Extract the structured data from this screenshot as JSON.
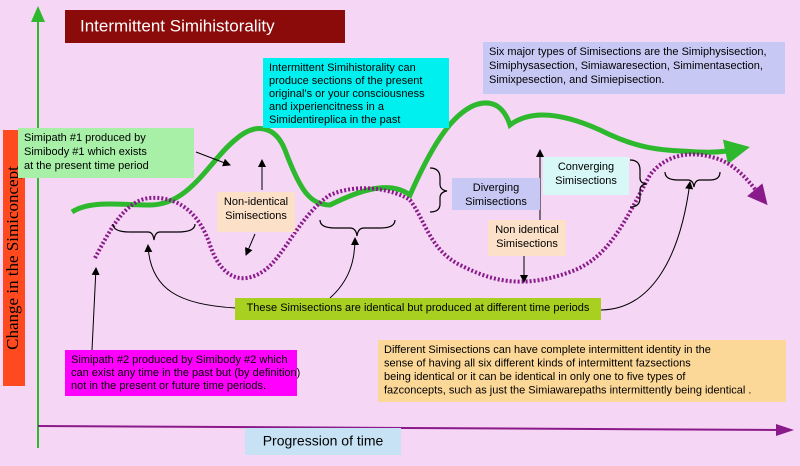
{
  "title": "Intermittent Simihistorality",
  "y_axis_label": "Change in the Simiconcept",
  "x_axis_label": "Progression of time",
  "notes": [
    [
      "Intermittent Simihistorality can",
      "produce sections of the present",
      "original's or your consciousness",
      "and ixperiencitness in a",
      "Simidentireplica in the past"
    ],
    [
      "Six major types of Simisections are the Simiphysisection,",
      "Simiphysasection, Simiawaresection, Simimentasection,",
      "Simixpesection, and Simiepisection."
    ],
    [
      "Simipath #1 produced by",
      "Simibody #1 which exists",
      "at the present time period"
    ],
    [
      "Non-identical",
      "Simisections"
    ],
    [
      "Diverging",
      "Simisections"
    ],
    [
      "Converging",
      "Simisections"
    ],
    [
      "Non identical",
      "Simisections"
    ],
    [
      "These Simisections are identical but produced at different time periods"
    ],
    [
      "Simipath #2 produced by Simibody #2 which",
      "can exist any time in the past but (by definition)",
      "not in the present or future time periods."
    ],
    [
      "Different Simisections can have complete intermittent identity in the",
      "sense of having all six different kinds of intermittent fazsections",
      "being identical or it can be identical in only one to five types of",
      "fazconcepts, such as just the Simiawarepaths intermittently being identical ."
    ]
  ]
}
